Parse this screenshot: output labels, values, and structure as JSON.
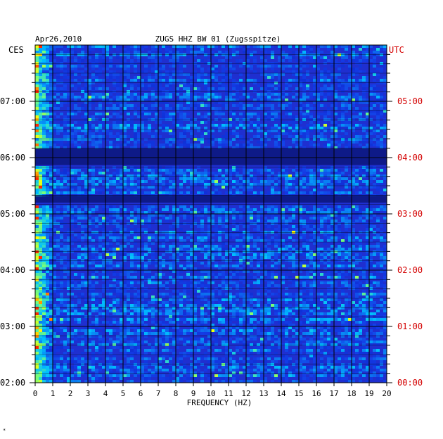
{
  "chart_data": {
    "type": "heatmap",
    "title": "ZUGS HHZ BW 01 (Zugsspitze)",
    "date": "Apr26,2010",
    "left_axis_label": "CES",
    "right_axis_label": "UTC",
    "xlabel": "FREQUENCY (HZ)",
    "xlim": [
      0,
      20
    ],
    "x_ticks": [
      "0",
      "1",
      "2",
      "3",
      "4",
      "5",
      "6",
      "7",
      "8",
      "9",
      "10",
      "11",
      "12",
      "13",
      "14",
      "15",
      "16",
      "17",
      "18",
      "19",
      "20"
    ],
    "y_ticks_left": [
      "02:00",
      "03:00",
      "04:00",
      "05:00",
      "06:00",
      "07:00"
    ],
    "y_ticks_right": [
      "00:00",
      "01:00",
      "02:00",
      "03:00",
      "04:00",
      "05:00"
    ],
    "time_range_local": [
      "02:00",
      "08:00"
    ],
    "time_range_utc": [
      "00:00",
      "06:00"
    ],
    "grid": true,
    "colors": {
      "background_intensity": "#1f2fd0",
      "quiet_band": "#0a1470",
      "gridline": "#000000",
      "frame": "#000000",
      "utc_text": "#d40000",
      "low": "#0000a0",
      "mid": "#00c8ff",
      "high": "#ffff00",
      "peak": "#ff0000"
    },
    "features": [
      {
        "kind": "quiet_band",
        "from_local": "05:52",
        "to_local": "06:10"
      },
      {
        "kind": "quiet_band",
        "from_local": "05:12",
        "to_local": "05:20"
      },
      {
        "kind": "high_energy_low_freq",
        "freq_hz": [
          0,
          1
        ],
        "note": ""
      }
    ]
  },
  "footnote": "*"
}
